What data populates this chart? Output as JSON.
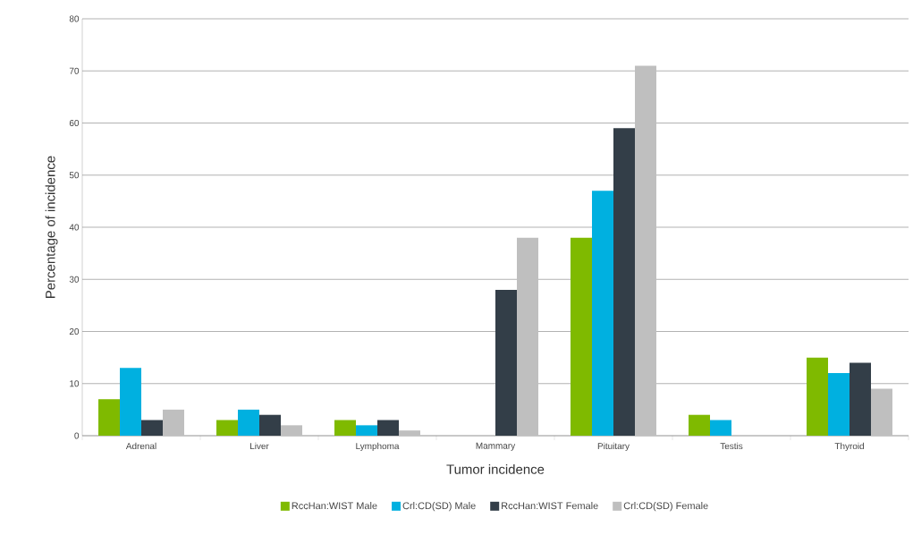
{
  "chart_data": {
    "type": "bar",
    "xlabel": "Tumor incidence",
    "ylabel": "Percentage of incidence",
    "categories": [
      "Adrenal",
      "Liver",
      "Lymphoma",
      "Mammary",
      "Pituitary",
      "Testis",
      "Thyroid"
    ],
    "series": [
      {
        "name": "RccHan:WIST Male",
        "color": "#7fba00",
        "values": [
          7,
          3,
          3,
          0,
          38,
          4,
          15
        ]
      },
      {
        "name": "Crl:CD(SD) Male",
        "color": "#00b0e0",
        "values": [
          13,
          5,
          2,
          0,
          47,
          3,
          12
        ]
      },
      {
        "name": "RccHan:WIST Female",
        "color": "#333e48",
        "values": [
          3,
          4,
          3,
          28,
          59,
          0,
          14
        ]
      },
      {
        "name": "Crl:CD(SD) Female",
        "color": "#bfbfbf",
        "values": [
          5,
          2,
          1,
          38,
          71,
          0,
          9
        ]
      }
    ],
    "ylim": [
      0,
      80
    ],
    "yticks": [
      0,
      10,
      20,
      30,
      40,
      50,
      60,
      70,
      80
    ],
    "grid": "y",
    "legend": "bottom"
  }
}
